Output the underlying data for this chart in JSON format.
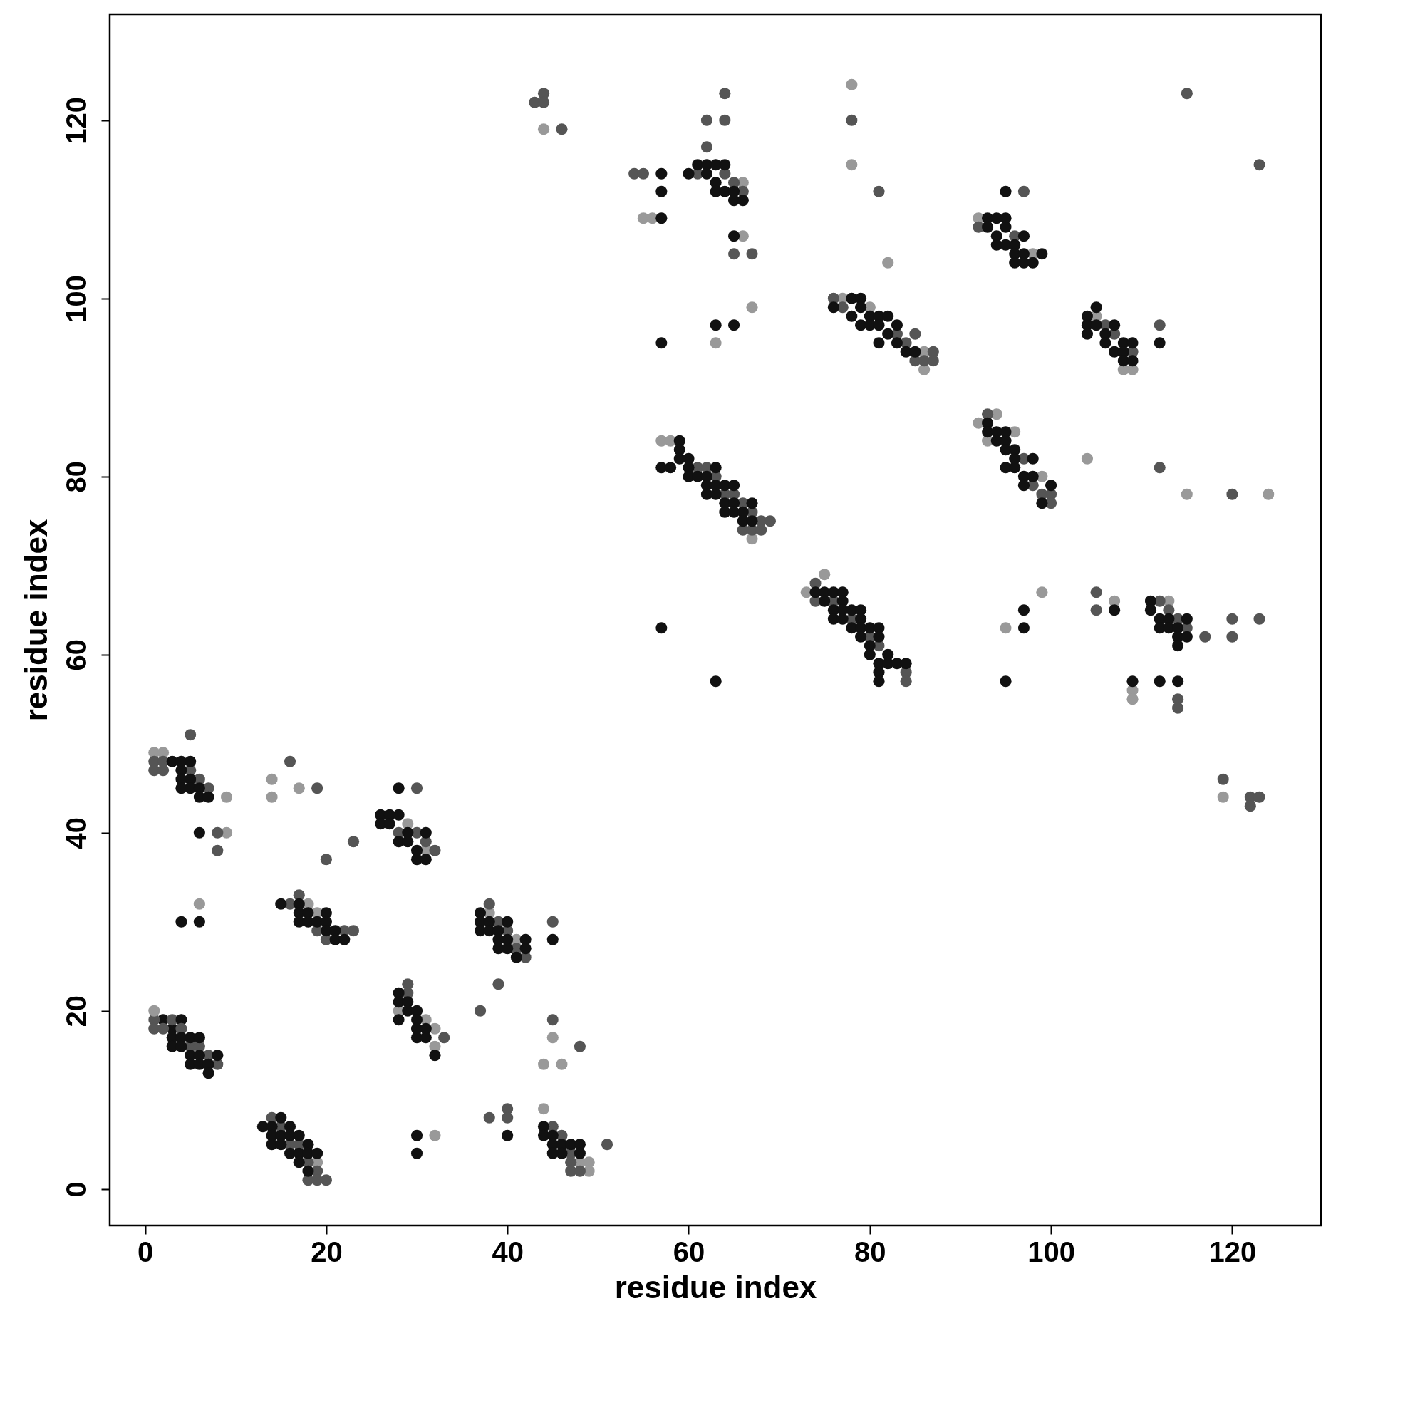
{
  "chart_data": {
    "type": "scatter",
    "xlabel": "residue index",
    "ylabel": "residue index",
    "xlim": [
      -3.9,
      129.8
    ],
    "ylim": [
      -4.1,
      131.9
    ],
    "xticks": [
      0,
      20,
      40,
      60,
      80,
      100,
      120
    ],
    "yticks": [
      0,
      20,
      40,
      60,
      80,
      100,
      120
    ],
    "grid": false,
    "legend": false,
    "marker": "circle",
    "series": [
      {
        "color": "#111111",
        "x": [
          2,
          3,
          3,
          3,
          4,
          4,
          4,
          5,
          5,
          5,
          6,
          6,
          6,
          7,
          7,
          8,
          13,
          14,
          14,
          14,
          15,
          15,
          15,
          16,
          16,
          16,
          17,
          17,
          17,
          18,
          18,
          18,
          19,
          3,
          4,
          4,
          4,
          4,
          5,
          5,
          5,
          6,
          6,
          7,
          6,
          4,
          6,
          15,
          17,
          17,
          17,
          18,
          18,
          19,
          20,
          20,
          20,
          21,
          21,
          22,
          26,
          26,
          27,
          27,
          28,
          28,
          28,
          29,
          29,
          30,
          30,
          31,
          31,
          28,
          28,
          28,
          29,
          29,
          30,
          30,
          30,
          30,
          31,
          31,
          32,
          30,
          30,
          37,
          37,
          37,
          38,
          38,
          39,
          39,
          39,
          40,
          40,
          40,
          41,
          42,
          42,
          45,
          44,
          44,
          45,
          45,
          45,
          46,
          46,
          47,
          48,
          48,
          40,
          57,
          57,
          57,
          60,
          61,
          62,
          62,
          63,
          63,
          63,
          64,
          64,
          65,
          65,
          66,
          65,
          63,
          65,
          57,
          57,
          63,
          59,
          57,
          58,
          59,
          59,
          60,
          60,
          60,
          61,
          62,
          62,
          62,
          63,
          63,
          63,
          64,
          64,
          64,
          65,
          65,
          65,
          66,
          66,
          67,
          67,
          74,
          75,
          75,
          76,
          76,
          76,
          77,
          77,
          77,
          77,
          78,
          78,
          79,
          79,
          79,
          79,
          80,
          80,
          80,
          81,
          81,
          81,
          81,
          81,
          82,
          82,
          83,
          84,
          76,
          78,
          78,
          79,
          79,
          79,
          80,
          80,
          81,
          81,
          81,
          82,
          82,
          83,
          83,
          84,
          85,
          93,
          93,
          94,
          94,
          94,
          95,
          95,
          95,
          95,
          96,
          96,
          96,
          97,
          97,
          97,
          98,
          99,
          93,
          93,
          94,
          94,
          95,
          95,
          95,
          95,
          96,
          96,
          96,
          97,
          97,
          98,
          98,
          99,
          100,
          97,
          97,
          95,
          104,
          104,
          104,
          105,
          105,
          106,
          106,
          107,
          107,
          108,
          108,
          108,
          109,
          109,
          112,
          111,
          111,
          112,
          112,
          113,
          113,
          114,
          114,
          114,
          115,
          115,
          107,
          109,
          112,
          114
        ],
        "values": [
          19,
          18,
          17,
          16,
          19,
          17,
          16,
          17,
          15,
          14,
          17,
          15,
          14,
          14,
          13,
          15,
          7,
          7,
          6,
          5,
          8,
          6,
          5,
          7,
          6,
          4,
          6,
          4,
          3,
          5,
          4,
          2,
          4,
          48,
          48,
          47,
          46,
          45,
          48,
          46,
          45,
          45,
          44,
          44,
          40,
          30,
          30,
          32,
          32,
          31,
          30,
          31,
          30,
          30,
          31,
          30,
          29,
          29,
          28,
          28,
          42,
          41,
          42,
          41,
          45,
          42,
          39,
          40,
          39,
          38,
          37,
          40,
          37,
          22,
          21,
          19,
          21,
          20,
          20,
          19,
          18,
          17,
          18,
          17,
          15,
          6,
          4,
          31,
          30,
          29,
          30,
          29,
          29,
          28,
          27,
          30,
          28,
          27,
          26,
          28,
          27,
          28,
          7,
          6,
          6,
          5,
          4,
          5,
          4,
          5,
          5,
          4,
          6,
          114,
          112,
          109,
          114,
          115,
          115,
          114,
          115,
          113,
          112,
          115,
          112,
          112,
          111,
          111,
          107,
          97,
          97,
          95,
          63,
          57,
          84,
          81,
          81,
          83,
          82,
          82,
          81,
          80,
          80,
          80,
          79,
          78,
          81,
          79,
          78,
          79,
          77,
          76,
          79,
          77,
          76,
          76,
          75,
          77,
          75,
          67,
          67,
          66,
          67,
          65,
          64,
          67,
          66,
          65,
          64,
          65,
          63,
          65,
          64,
          63,
          62,
          63,
          61,
          60,
          63,
          62,
          59,
          58,
          57,
          60,
          59,
          59,
          59,
          99,
          100,
          98,
          100,
          99,
          97,
          98,
          97,
          98,
          97,
          95,
          98,
          96,
          97,
          95,
          94,
          94,
          109,
          108,
          109,
          107,
          106,
          112,
          109,
          108,
          106,
          106,
          105,
          104,
          107,
          105,
          104,
          104,
          105,
          86,
          85,
          85,
          84,
          85,
          84,
          83,
          81,
          83,
          82,
          81,
          80,
          79,
          82,
          80,
          77,
          79,
          65,
          63,
          57,
          98,
          97,
          96,
          99,
          97,
          96,
          95,
          97,
          94,
          95,
          94,
          93,
          95,
          93,
          95,
          66,
          65,
          64,
          63,
          64,
          63,
          63,
          62,
          61,
          64,
          62,
          65,
          57,
          57,
          57
        ]
      },
      {
        "color": "#555555",
        "x": [
          1,
          1,
          2,
          3,
          4,
          5,
          6,
          7,
          8,
          14,
          15,
          16,
          17,
          18,
          18,
          19,
          19,
          20,
          1,
          1,
          2,
          2,
          5,
          5,
          6,
          7,
          8,
          8,
          16,
          19,
          16,
          17,
          19,
          20,
          22,
          23,
          20,
          23,
          28,
          30,
          30,
          31,
          32,
          29,
          29,
          33,
          38,
          39,
          40,
          41,
          42,
          45,
          37,
          39,
          45,
          46,
          47,
          47,
          47,
          48,
          51,
          38,
          40,
          40,
          45,
          48,
          43,
          44,
          44,
          46,
          54,
          55,
          61,
          62,
          62,
          64,
          64,
          64,
          65,
          66,
          65,
          67,
          61,
          62,
          63,
          64,
          65,
          66,
          66,
          67,
          67,
          68,
          68,
          69,
          74,
          74,
          76,
          78,
          80,
          81,
          84,
          84,
          76,
          77,
          83,
          84,
          85,
          85,
          86,
          87,
          87,
          78,
          81,
          92,
          96,
          97,
          93,
          97,
          98,
          99,
          100,
          100,
          106,
          107,
          109,
          112,
          112,
          112,
          113,
          114,
          115,
          117,
          120,
          120,
          123,
          105,
          105,
          114,
          114,
          120,
          115,
          123,
          119,
          122,
          122,
          123
        ],
        "values": [
          19,
          18,
          18,
          19,
          18,
          16,
          16,
          15,
          14,
          8,
          7,
          5,
          5,
          3,
          1,
          2,
          1,
          1,
          48,
          47,
          48,
          47,
          51,
          47,
          46,
          45,
          40,
          38,
          48,
          45,
          32,
          33,
          29,
          28,
          29,
          29,
          37,
          39,
          40,
          45,
          40,
          39,
          38,
          23,
          22,
          17,
          32,
          30,
          29,
          27,
          26,
          30,
          20,
          23,
          7,
          6,
          4,
          3,
          2,
          2,
          5,
          8,
          9,
          8,
          19,
          16,
          122,
          123,
          122,
          119,
          114,
          114,
          114,
          120,
          117,
          123,
          120,
          114,
          113,
          112,
          105,
          105,
          81,
          81,
          80,
          78,
          78,
          77,
          74,
          76,
          74,
          75,
          74,
          75,
          68,
          66,
          66,
          64,
          62,
          61,
          58,
          57,
          100,
          99,
          96,
          95,
          96,
          93,
          93,
          94,
          93,
          120,
          112,
          108,
          107,
          112,
          87,
          82,
          79,
          78,
          78,
          77,
          97,
          96,
          94,
          97,
          81,
          66,
          65,
          64,
          63,
          62,
          64,
          62,
          64,
          67,
          65,
          55,
          54,
          78,
          123,
          115,
          46,
          44,
          43,
          44
        ]
      },
      {
        "color": "#999999",
        "x": [
          1,
          19,
          1,
          2,
          9,
          9,
          6,
          14,
          14,
          17,
          18,
          19,
          29,
          31,
          28,
          31,
          32,
          32,
          32,
          38,
          41,
          48,
          49,
          49,
          44,
          44,
          46,
          45,
          44,
          55,
          56,
          66,
          66,
          63,
          67,
          57,
          58,
          67,
          73,
          75,
          77,
          80,
          86,
          86,
          78,
          78,
          82,
          92,
          98,
          92,
          93,
          94,
          96,
          99,
          104,
          99,
          95,
          105,
          108,
          109,
          113,
          107,
          109,
          109,
          115,
          124,
          119
        ],
        "values": [
          20,
          3,
          49,
          49,
          44,
          40,
          32,
          46,
          44,
          45,
          32,
          31,
          41,
          38,
          20,
          19,
          18,
          16,
          6,
          31,
          28,
          3,
          3,
          2,
          9,
          14,
          14,
          17,
          119,
          109,
          109,
          113,
          107,
          95,
          99,
          84,
          84,
          73,
          67,
          69,
          100,
          99,
          94,
          92,
          124,
          115,
          104,
          109,
          105,
          86,
          84,
          87,
          85,
          80,
          82,
          67,
          63,
          98,
          92,
          92,
          66,
          66,
          56,
          55,
          78,
          78,
          44
        ]
      }
    ]
  }
}
